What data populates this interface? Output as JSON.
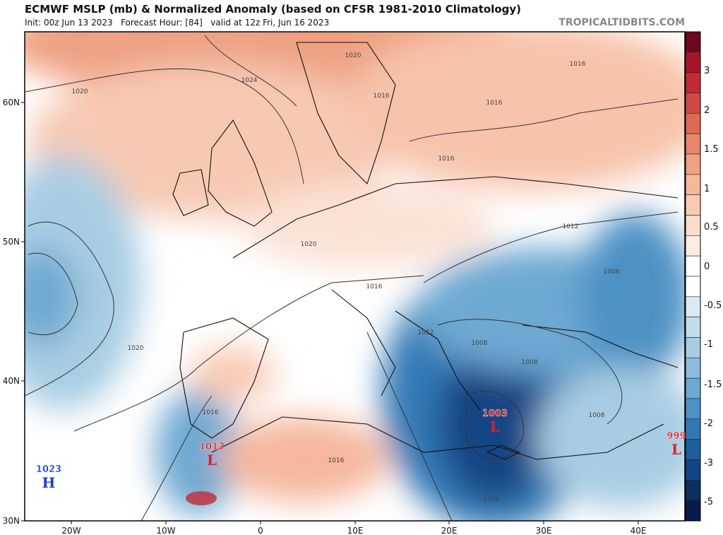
{
  "header": {
    "title": "ECMWF MSLP (mb) & Normalized Anomaly (based on CFSR 1981-2010 Climatology)",
    "subtitle": "Init: 00z Jun 13 2023   Forecast Hour: [84]   valid at 12z Fri, Jun 16 2023",
    "brand": "TROPICALTIDBITS.COM"
  },
  "axes": {
    "lon_labels": [
      "20W",
      "10W",
      "0",
      "10E",
      "20E",
      "30E",
      "40E"
    ],
    "lat_labels": [
      "60N",
      "50N",
      "40N",
      "30N"
    ]
  },
  "contour_labels": [
    "1020",
    "1024",
    "1020",
    "1016",
    "1016",
    "1016",
    "1016",
    "1012",
    "1020",
    "1016",
    "1012",
    "1008",
    "1008",
    "1008",
    "1008",
    "1020",
    "1016",
    "1016",
    "1008"
  ],
  "pressure_centers": [
    {
      "type": "H",
      "value": "1023",
      "color": "#1a3fe0"
    },
    {
      "type": "L",
      "value": "1012",
      "color": "#e0202a"
    },
    {
      "type": "L",
      "value": "1003",
      "color": "#e0202a"
    },
    {
      "type": "L",
      "value": "999",
      "color": "#e0202a"
    }
  ],
  "colorbar": {
    "labels": [
      "3",
      "2",
      "1.5",
      "1",
      "0.5",
      "0",
      "-0.5",
      "-1",
      "-1.5",
      "-2",
      "-3",
      "-5"
    ],
    "colors": [
      "#6b0a1e",
      "#a5152a",
      "#c02a35",
      "#cf4a44",
      "#dd6a55",
      "#e8856a",
      "#f0a083",
      "#f5b79c",
      "#f9cbb4",
      "#fbdccb",
      "#fdebe2",
      "#ffffff",
      "#ffffff",
      "#d9e9f2",
      "#c2dcec",
      "#a8cde3",
      "#8cbcdc",
      "#6ea9d2",
      "#4d92c5",
      "#3179b6",
      "#1c5e9f",
      "#124583",
      "#0d2e60",
      "#0a1a4c"
    ]
  }
}
